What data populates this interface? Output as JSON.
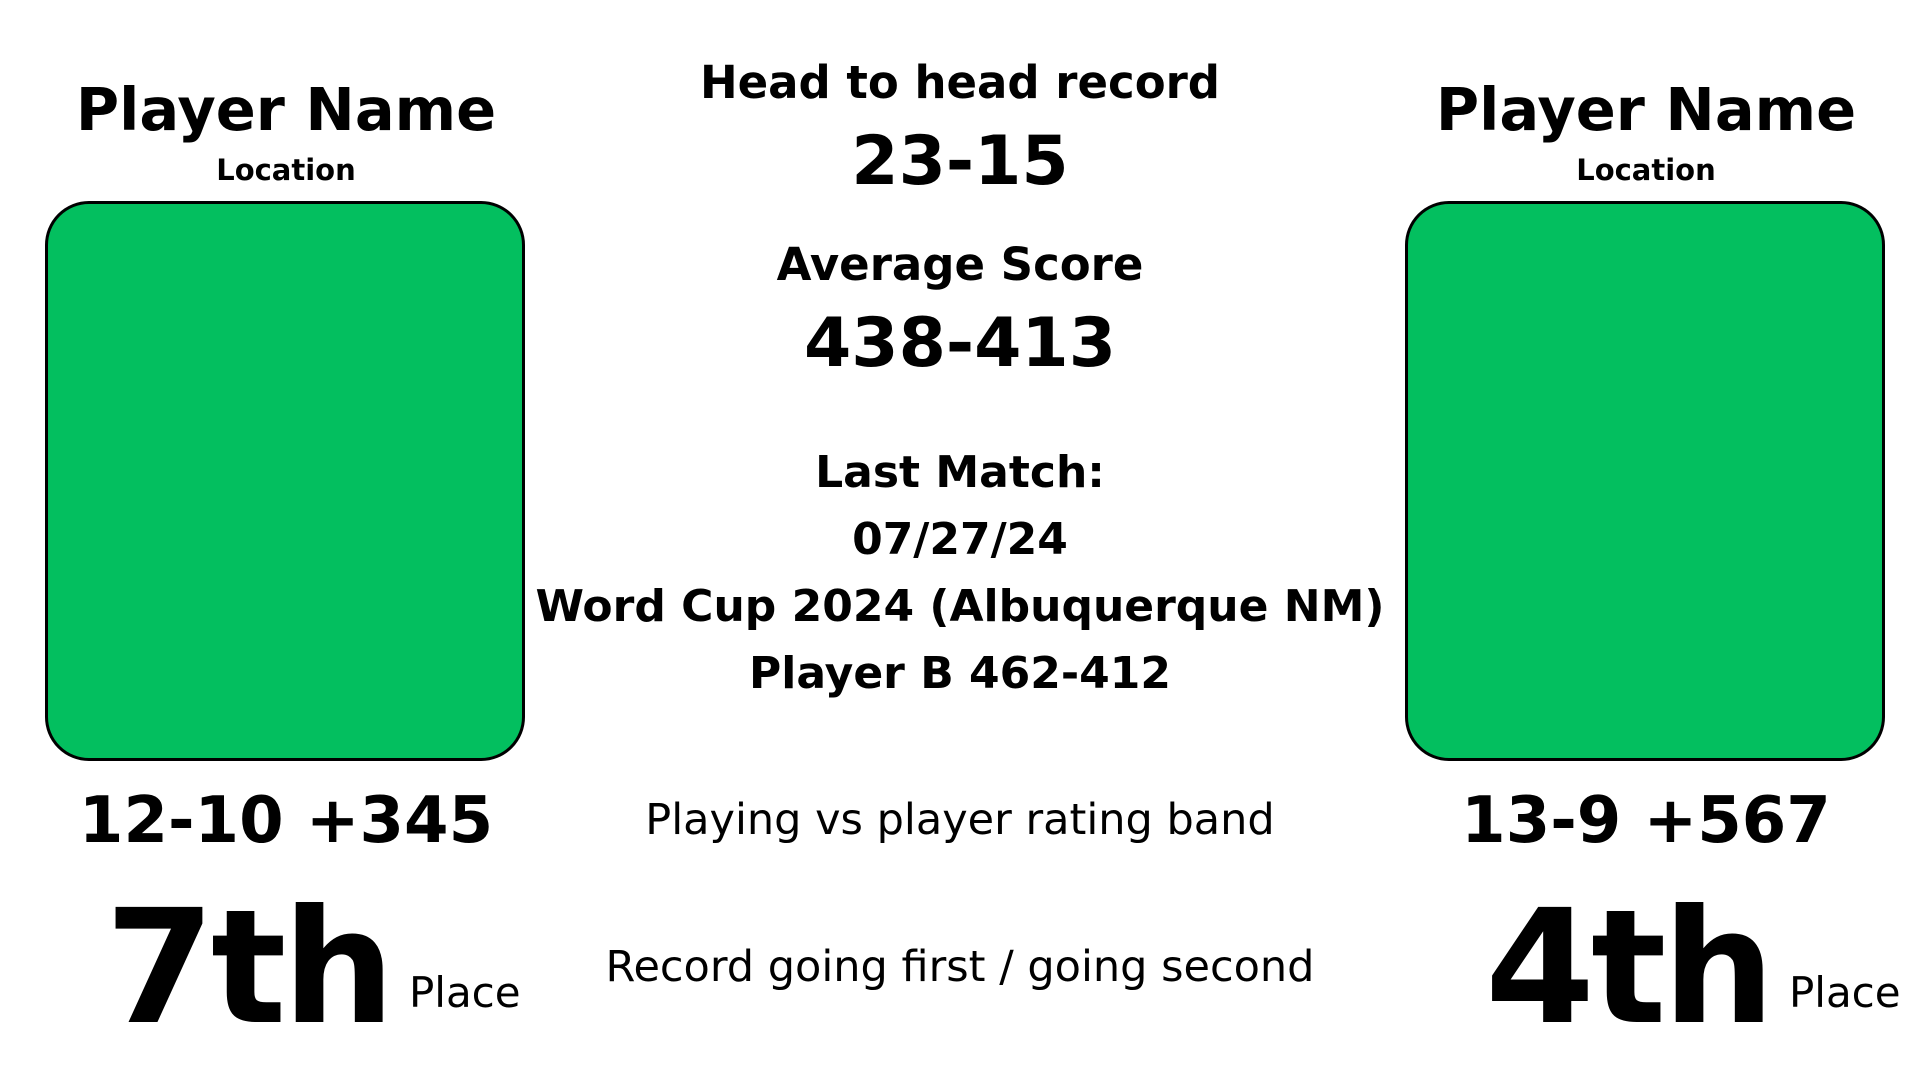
{
  "left_player": {
    "name": "Player Name",
    "location": "Location",
    "record": "12-10 +345",
    "place_number": "7th",
    "place_label": "Place",
    "photo_color": "#03bf5f"
  },
  "right_player": {
    "name": "Player Name",
    "location": "Location",
    "record": "13-9 +567",
    "place_number": "4th",
    "place_label": "Place",
    "photo_color": "#03bf5f"
  },
  "center": {
    "head_to_head_label": "Head to head record",
    "head_to_head_value": "23-15",
    "average_score_label": "Average Score",
    "average_score_value": "438-413",
    "last_match_label": "Last Match:",
    "last_match_date": "07/27/24",
    "last_match_event": "Word Cup 2024 (Albuquerque NM)",
    "last_match_result": "Player B 462-412",
    "rating_band_text": "Playing vs player rating band",
    "first_second_text": "Record going first / going second"
  }
}
